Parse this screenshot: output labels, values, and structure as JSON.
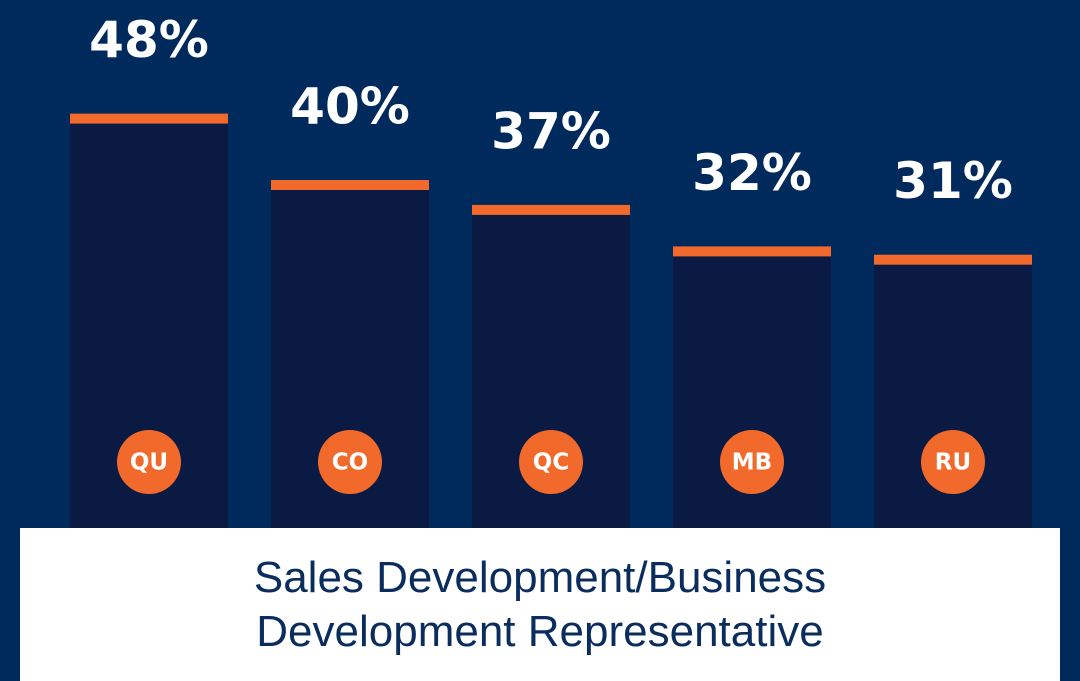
{
  "chart_data": {
    "type": "bar",
    "title": "Sales Development/Business Development Representative",
    "categories": [
      "QU",
      "CO",
      "QC",
      "MB",
      "RU"
    ],
    "values": [
      48,
      40,
      37,
      32,
      31
    ],
    "value_labels": [
      "48%",
      "40%",
      "37%",
      "32%",
      "31%"
    ],
    "color": "#0a1a42",
    "cap_color": "#f26a2b"
  }
}
